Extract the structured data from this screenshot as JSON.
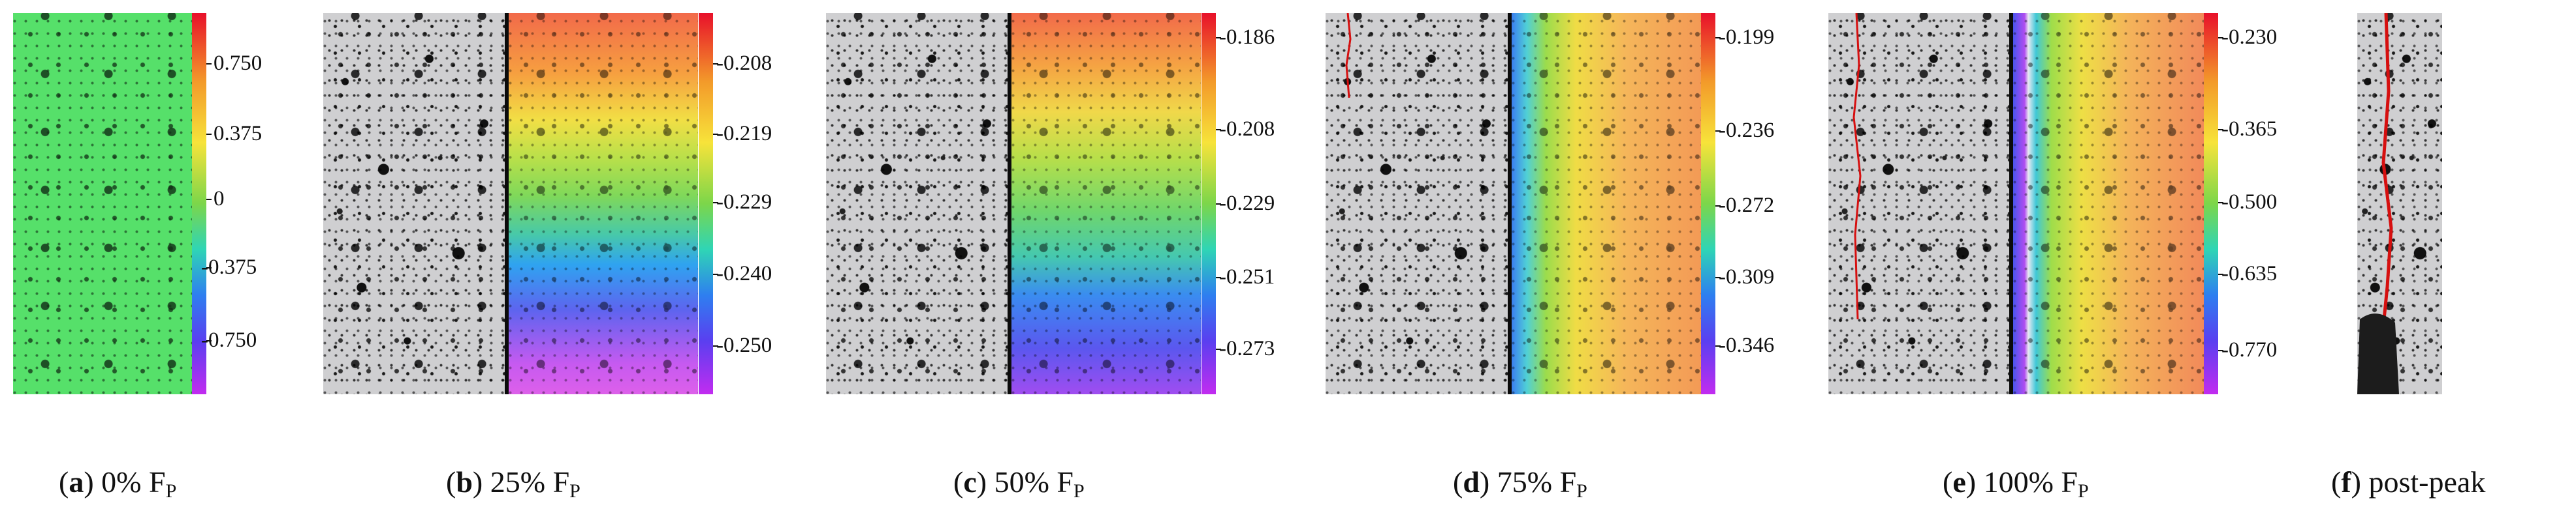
{
  "panels": [
    {
      "id": "a",
      "letter": "a",
      "percent": "0% F",
      "sub": "P",
      "ticks": [
        "0.750",
        "0.375",
        "0",
        "-0.375",
        "-0.750"
      ]
    },
    {
      "id": "b",
      "letter": "b",
      "percent": "25% F",
      "sub": "P",
      "ticks": [
        "-0.208",
        "-0.219",
        "-0.229",
        "-0.240",
        "-0.250"
      ]
    },
    {
      "id": "c",
      "letter": "c",
      "percent": "50% F",
      "sub": "P",
      "ticks": [
        "-0.186",
        "-0.208",
        "-0.229",
        "-0.251",
        "-0.273"
      ]
    },
    {
      "id": "d",
      "letter": "d",
      "percent": "75% F",
      "sub": "P",
      "ticks": [
        "-0.199",
        "-0.236",
        "-0.272",
        "-0.309",
        "-0.346"
      ]
    },
    {
      "id": "e",
      "letter": "e",
      "percent": "100% F",
      "sub": "P",
      "ticks": [
        "-0.230",
        "-0.365",
        "-0.500",
        "-0.635",
        "-0.770"
      ]
    },
    {
      "id": "f",
      "letter": "f",
      "percent": "post-peak",
      "sub": "",
      "ticks": []
    }
  ],
  "colors": {
    "colormap": [
      "#e8102a",
      "#f39a2a",
      "#f7e33a",
      "#7cd64a",
      "#2fd5b5",
      "#2e7ff0",
      "#5a3ff0",
      "#c22cf0"
    ],
    "uniform": "#56e06a",
    "crack": "#d60f0f",
    "specimen_gray": "#cfcfd1"
  }
}
